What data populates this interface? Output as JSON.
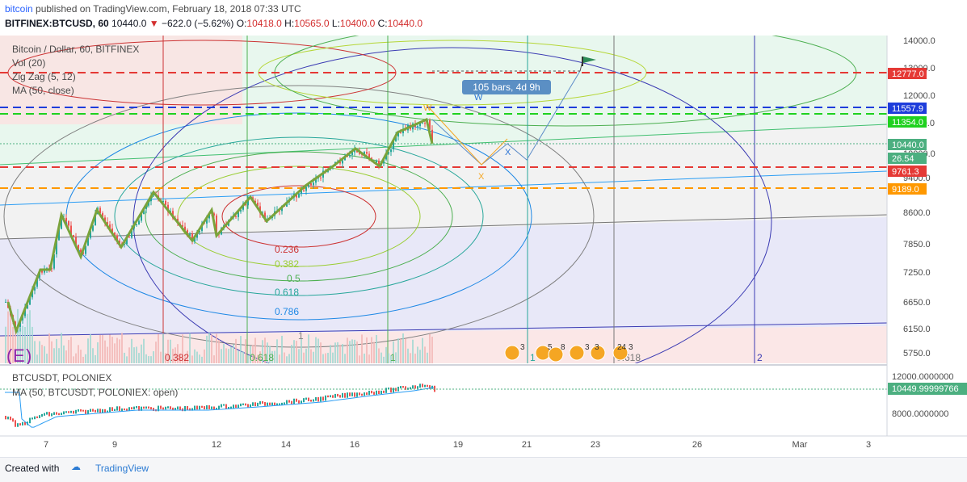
{
  "header": {
    "user": "bitcoin",
    "published": "published on TradingView.com, February 18, 2018 07:33 UTC",
    "symbol": "BITFINEX:BTCUSD, 60",
    "last": "10440.0",
    "change": "−622.0 (−5.62%)",
    "o_label": "O:",
    "o": "10418.0",
    "h_label": "H:",
    "h": "10565.0",
    "l_label": "L:",
    "l": "10400.0",
    "c_label": "C:",
    "c": "10440.0"
  },
  "legend": {
    "main": "Bitcoin / Dollar, 60, BITFINEX",
    "vol": "Vol (20)",
    "zigzag": "Zig Zag (5, 12)",
    "ma": "MA (50, close)"
  },
  "bars_label": "105 bars, 4d 9h",
  "wave_labels": {
    "w1": "W",
    "w2": "W",
    "x1": "X",
    "x2": "X"
  },
  "fib_labels": [
    "0.236",
    "0.382",
    "0.5",
    "0.618",
    "0.786",
    "1"
  ],
  "bottom_fib_labels": [
    "0.382",
    "0.618",
    "1",
    "1",
    "0.618",
    "2"
  ],
  "events": [
    {
      "count": "3"
    },
    {
      "count": "5"
    },
    {
      "count": "8"
    },
    {
      "count": "3"
    },
    {
      "count": "3"
    },
    {
      "count": "24"
    },
    {
      "count": "3"
    }
  ],
  "price_axis": {
    "ticks": [
      "14000.0",
      "13000.0",
      "12000.0",
      "11000.0",
      "10000.0",
      "9400.0",
      "8600.0",
      "7850.0",
      "7250.0",
      "6650.0",
      "6150.0",
      "5750.0"
    ],
    "badges": [
      {
        "text": "12777.0",
        "color": "#e53935"
      },
      {
        "text": "11557.9",
        "color": "#1e3ddb"
      },
      {
        "text": "11354.0",
        "color": "#1fd11f"
      },
      {
        "text": "10440.0",
        "color": "#4caf80"
      },
      {
        "text": "26.54",
        "color": "#4caf80"
      },
      {
        "text": "9761.3",
        "color": "#e53935"
      },
      {
        "text": "9189.0",
        "color": "#ff9800"
      }
    ]
  },
  "sub_panel": {
    "title": "BTCUSDT, POLONIEX",
    "ma": "MA (50, BTCUSDT, POLONIEX: open)",
    "ticks": [
      "12000.0000000",
      "8000.0000000"
    ],
    "badge": "10449.99999766"
  },
  "time_axis": [
    "7",
    "9",
    "12",
    "14",
    "16",
    "19",
    "21",
    "23",
    "26",
    "Mar",
    "3"
  ],
  "footer": {
    "created": "Created with",
    "brand": "TradingView"
  },
  "logo_letter": "E",
  "chart_data": {
    "type": "candlestick",
    "title": "Bitcoin / Dollar, 60, BITFINEX",
    "x_ticks": [
      "7",
      "9",
      "12",
      "14",
      "16",
      "19",
      "21",
      "23",
      "26",
      "Mar",
      "3"
    ],
    "y_ticks": [
      14000,
      13000,
      12000,
      11000,
      10000,
      9400,
      8600,
      7850,
      7250,
      6650,
      6150,
      5750
    ],
    "ylim": [
      5500,
      14300
    ],
    "horizontal_levels": [
      12777.0,
      11557.9,
      11354.0,
      9761.3,
      9189.0
    ],
    "zigzag": [
      {
        "x": "Feb 6",
        "y": 6000
      },
      {
        "x": "Feb 7",
        "y": 8550
      },
      {
        "x": "Feb 8",
        "y": 7850
      },
      {
        "x": "Feb 9",
        "y": 8700
      },
      {
        "x": "Feb 11",
        "y": 7880
      },
      {
        "x": "Feb 12",
        "y": 8600
      },
      {
        "x": "Feb 13",
        "y": 8300
      },
      {
        "x": "Feb 16",
        "y": 10250
      },
      {
        "x": "Feb 17",
        "y": 11100
      },
      {
        "x": "Feb 18",
        "y": 10440
      }
    ],
    "projection": [
      {
        "label": "W",
        "y": 11000
      },
      {
        "label": "X",
        "y": 9650
      },
      {
        "label": "W",
        "y": 11650
      },
      {
        "label": "X",
        "y": 10450
      },
      {
        "y": 12900
      }
    ],
    "last": 10440.0,
    "sub_series": {
      "name": "BTCUSDT, POLONIEX",
      "last": 10449.99999766,
      "ticks": [
        12000,
        8000
      ]
    }
  }
}
